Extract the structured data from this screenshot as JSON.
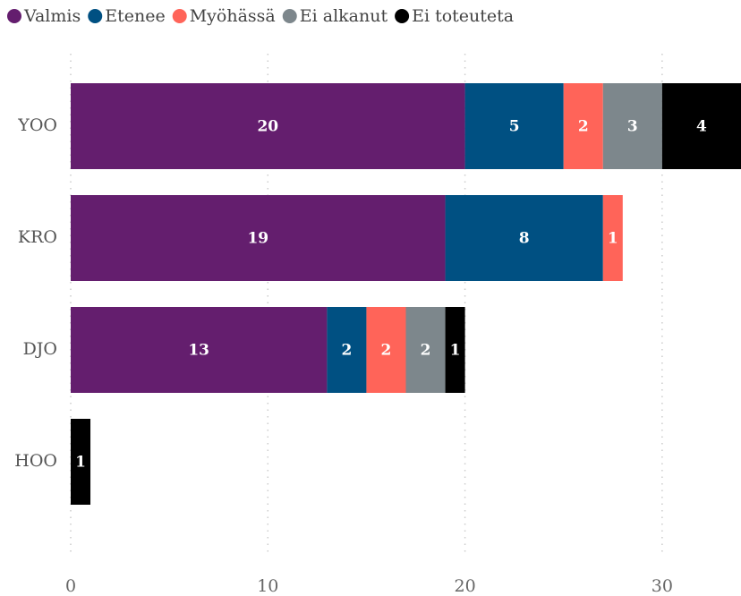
{
  "chart_data": {
    "type": "stacked_bar_horizontal",
    "categories": [
      "YOO",
      "KRO",
      "DJO",
      "HOO"
    ],
    "series": [
      {
        "name": "Valmis",
        "color": "#641e6e",
        "values": [
          20,
          19,
          13,
          null
        ]
      },
      {
        "name": "Etenee",
        "color": "#005082",
        "values": [
          5,
          8,
          2,
          null
        ]
      },
      {
        "name": "Myöhässä",
        "color": "#ff6459",
        "values": [
          2,
          1,
          2,
          null
        ]
      },
      {
        "name": "Ei alkanut",
        "color": "#7d878c",
        "values": [
          3,
          null,
          2,
          null
        ]
      },
      {
        "name": "Ei toteuteta",
        "color": "#000000",
        "values": [
          4,
          null,
          1,
          1
        ]
      }
    ],
    "xlim": [
      0,
      34
    ],
    "xticks": [
      0,
      10,
      20,
      30
    ],
    "grid": true,
    "legend": "top-left"
  }
}
